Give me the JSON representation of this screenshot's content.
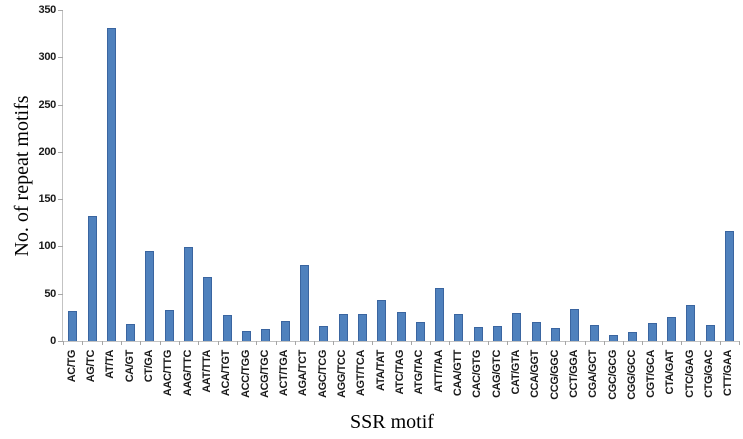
{
  "chart_data": {
    "type": "bar",
    "title": "",
    "xlabel": "SSR motif",
    "ylabel": "No. of repeat motifs",
    "categories": [
      "AC/TG",
      "AG/TC",
      "AT/TA",
      "CA/GT",
      "CT/GA",
      "AAC/TTG",
      "AAG/TTC",
      "AAT/TTA",
      "ACA/TGT",
      "ACC/TGG",
      "ACG/TGC",
      "ACT/TGA",
      "AGA/TCT",
      "AGC/TCG",
      "AGG/TCC",
      "AGT/TCA",
      "ATA/TAT",
      "ATC/TAG",
      "ATG/TAC",
      "ATT/TAA",
      "CAA/GTT",
      "CAC/GTG",
      "CAG/GTC",
      "CAT/GTA",
      "CCA/GGT",
      "CCG/GGC",
      "CCT/GGA",
      "CGA/GCT",
      "CGC/GCG",
      "CGG/GCC",
      "CGT/GCA",
      "CTA/GAT",
      "CTC/GAG",
      "CTG/GAC",
      "CTT/GAA"
    ],
    "values": [
      32,
      132,
      331,
      18,
      95,
      33,
      99,
      68,
      28,
      11,
      13,
      21,
      80,
      16,
      29,
      29,
      43,
      31,
      20,
      56,
      29,
      15,
      16,
      30,
      20,
      14,
      34,
      17,
      6,
      10,
      19,
      25,
      38,
      17,
      116
    ],
    "ylim": [
      0,
      350
    ],
    "ytick_step": 50,
    "ytick_labels": [
      "0",
      "50",
      "100",
      "150",
      "200",
      "250",
      "300",
      "350"
    ],
    "grid": false,
    "legend": false,
    "bar_color": "#4f81bd",
    "bar_border_color": "#3a65a0",
    "axis_line_color": "#c3c3c3",
    "tick_mark_color": "#a6a6a6",
    "text_color": "#1a1a1a"
  }
}
